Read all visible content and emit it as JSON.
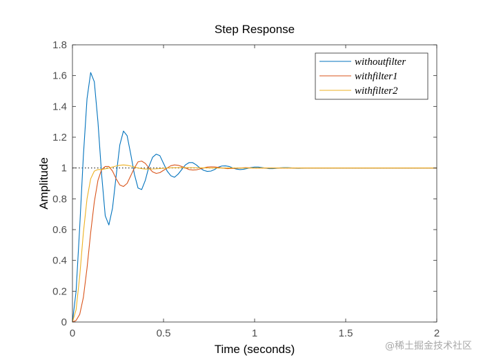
{
  "chart_data": {
    "type": "line",
    "title": "Step Response",
    "xlabel": "Time (seconds)",
    "ylabel": "Amplitude",
    "xlim": [
      0,
      2
    ],
    "ylim": [
      0,
      1.8
    ],
    "xticks": [
      0,
      0.5,
      1,
      1.5,
      2
    ],
    "xtick_labels": [
      "0",
      "0.5",
      "1",
      "1.5",
      "2"
    ],
    "yticks": [
      0,
      0.2,
      0.4,
      0.6,
      0.8,
      1,
      1.2,
      1.4,
      1.6,
      1.8
    ],
    "ytick_labels": [
      "0",
      "0.2",
      "0.4",
      "0.6",
      "0.8",
      "1",
      "1.2",
      "1.4",
      "1.6",
      "1.8"
    ],
    "grid": false,
    "legend_position": "top-right",
    "reference_line": {
      "y": 1,
      "style": "dotted",
      "color": "#000000"
    },
    "series": [
      {
        "name": "withoutfilter",
        "color": "#0072BD",
        "x": [
          0,
          0.02,
          0.04,
          0.06,
          0.08,
          0.1,
          0.12,
          0.14,
          0.16,
          0.18,
          0.2,
          0.22,
          0.24,
          0.26,
          0.28,
          0.3,
          0.32,
          0.34,
          0.36,
          0.38,
          0.4,
          0.42,
          0.44,
          0.46,
          0.48,
          0.5,
          0.52,
          0.54,
          0.56,
          0.58,
          0.6,
          0.62,
          0.64,
          0.66,
          0.68,
          0.7,
          0.72,
          0.74,
          0.76,
          0.78,
          0.8,
          0.82,
          0.84,
          0.86,
          0.88,
          0.9,
          0.92,
          0.94,
          0.96,
          0.98,
          1.0,
          1.02,
          1.04,
          1.06,
          1.08,
          1.1,
          1.12,
          1.14,
          1.16,
          1.18,
          1.2,
          1.22,
          1.24,
          1.26,
          1.28,
          1.3,
          1.35,
          1.4,
          1.5,
          1.6,
          1.7,
          1.8,
          1.9,
          2.0
        ],
        "y": [
          0,
          0.2,
          0.62,
          1.08,
          1.45,
          1.62,
          1.56,
          1.3,
          0.96,
          0.69,
          0.63,
          0.74,
          0.95,
          1.15,
          1.24,
          1.21,
          1.09,
          0.96,
          0.87,
          0.86,
          0.92,
          1.01,
          1.07,
          1.09,
          1.08,
          1.03,
          0.98,
          0.95,
          0.94,
          0.96,
          0.99,
          1.02,
          1.035,
          1.035,
          1.02,
          1.0,
          0.985,
          0.978,
          0.98,
          0.99,
          1.005,
          1.013,
          1.014,
          1.01,
          1.0,
          0.993,
          0.99,
          0.992,
          0.997,
          1.003,
          1.006,
          1.006,
          1.003,
          0.999,
          0.996,
          0.996,
          0.998,
          1.001,
          1.002,
          1.002,
          1.001,
          0.999,
          0.998,
          0.999,
          1.0,
          1.0,
          1.0,
          1.0,
          1.0,
          1.0,
          1.0,
          1.0,
          1.0,
          1.0
        ]
      },
      {
        "name": "withfilter1",
        "color": "#D95319",
        "x": [
          0,
          0.02,
          0.04,
          0.06,
          0.08,
          0.1,
          0.12,
          0.14,
          0.16,
          0.18,
          0.2,
          0.22,
          0.24,
          0.26,
          0.28,
          0.3,
          0.32,
          0.34,
          0.36,
          0.38,
          0.4,
          0.42,
          0.44,
          0.46,
          0.48,
          0.5,
          0.52,
          0.54,
          0.56,
          0.58,
          0.6,
          0.62,
          0.64,
          0.66,
          0.68,
          0.7,
          0.72,
          0.74,
          0.76,
          0.78,
          0.8,
          0.85,
          0.9,
          0.95,
          1.0,
          1.1,
          1.2,
          1.3,
          1.5,
          1.7,
          2.0
        ],
        "y": [
          0,
          0.01,
          0.05,
          0.16,
          0.35,
          0.58,
          0.78,
          0.92,
          0.99,
          1.01,
          1.01,
          0.98,
          0.93,
          0.89,
          0.88,
          0.9,
          0.95,
          1.0,
          1.04,
          1.045,
          1.03,
          1.0,
          0.975,
          0.965,
          0.97,
          0.985,
          1.0,
          1.015,
          1.02,
          1.018,
          1.01,
          1.0,
          0.99,
          0.987,
          0.988,
          0.994,
          1.0,
          1.006,
          1.008,
          1.007,
          1.004,
          0.996,
          0.998,
          1.002,
          1.0,
          1.0,
          1.0,
          1.0,
          1.0,
          1.0,
          1.0
        ]
      },
      {
        "name": "withfilter2",
        "color": "#EDB120",
        "x": [
          0,
          0.02,
          0.04,
          0.06,
          0.08,
          0.1,
          0.12,
          0.14,
          0.16,
          0.18,
          0.2,
          0.22,
          0.24,
          0.26,
          0.28,
          0.3,
          0.32,
          0.34,
          0.36,
          0.38,
          0.4,
          0.45,
          0.5,
          0.55,
          0.6,
          0.7,
          0.8,
          1.0,
          1.2,
          1.5,
          2.0
        ],
        "y": [
          0,
          0.08,
          0.3,
          0.58,
          0.8,
          0.93,
          0.98,
          0.99,
          0.99,
          0.995,
          1.0,
          1.007,
          1.013,
          1.018,
          1.02,
          1.018,
          1.013,
          1.007,
          1.0,
          0.996,
          0.993,
          0.994,
          0.998,
          1.002,
          1.003,
          1.001,
          1.0,
          1.0,
          1.0,
          1.0,
          1.0
        ]
      }
    ]
  },
  "watermark": "@稀土掘金技术社区"
}
